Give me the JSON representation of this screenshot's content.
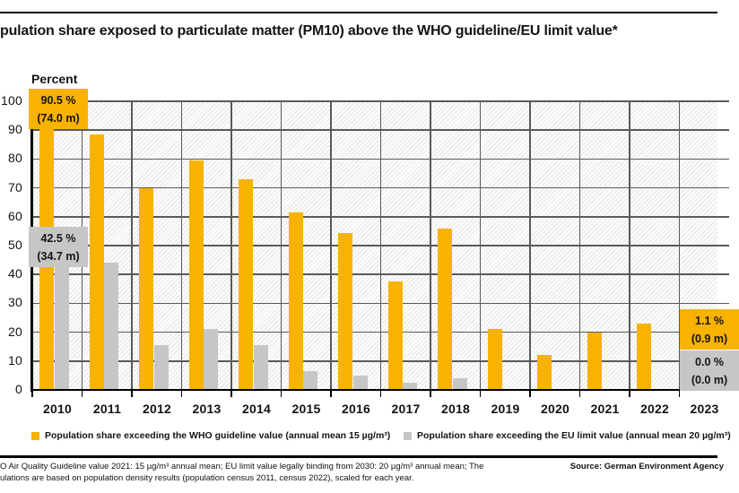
{
  "title": "pulation share exposed to particulate matter (PM10) above the WHO guideline/EU limit value*",
  "chart_data": {
    "type": "bar",
    "ylabel": "Percent",
    "ylim": [
      0,
      100
    ],
    "yticks": [
      "100",
      "90",
      "80",
      "70",
      "60",
      "50",
      "40",
      "30",
      "20",
      "10",
      "0"
    ],
    "grid": "on",
    "legend_position": "bottom",
    "categories": [
      "2010",
      "2011",
      "2012",
      "2013",
      "2014",
      "2015",
      "2016",
      "2017",
      "2018",
      "2019",
      "2020",
      "2021",
      "2022",
      "2023"
    ],
    "series": [
      {
        "name": "Population share exceeding the WHO guideline value (annual mean 15 µg/m³)",
        "color": "#F8B200",
        "values": [
          90.5,
          88.5,
          70.0,
          79.5,
          73.0,
          61.5,
          54.5,
          37.5,
          56.0,
          21.0,
          12.0,
          20.0,
          23.0,
          1.1
        ]
      },
      {
        "name": "Population share exceeding the EU limit value (annual mean 20 µg/m³)",
        "color": "#C6C6C6",
        "values": [
          42.5,
          44.0,
          15.5,
          21.0,
          15.5,
          6.5,
          5.0,
          2.5,
          4.0,
          0,
          0,
          0,
          0,
          0
        ]
      }
    ],
    "annotations": [
      {
        "year": "2010",
        "series": "WHO",
        "line1": "90.5 %",
        "line2": "(74.0 m)"
      },
      {
        "year": "2010",
        "series": "EU",
        "line1": "42.5 %",
        "line2": "(34.7 m)"
      },
      {
        "year": "2023",
        "series": "WHO",
        "line1": "1.1 %",
        "line2": "(0.9 m)"
      },
      {
        "year": "2023",
        "series": "EU",
        "line1": "0.0 %",
        "line2": "(0.0 m)"
      }
    ]
  },
  "footer": {
    "note_line1": "O Air Quality Guideline value 2021: 15 µg/m³ annual mean; EU limit value legally binding from 2030: 20 µg/m³ annual mean; The",
    "note_line2": "ulations are based on population density results (population census 2011, census 2022), scaled for each year.",
    "source": "Source: German Environment Agency"
  },
  "colors": {
    "who_yellow": "#F8B200",
    "eu_gray": "#C6C6C6",
    "gridline": "#5a5a5a"
  }
}
